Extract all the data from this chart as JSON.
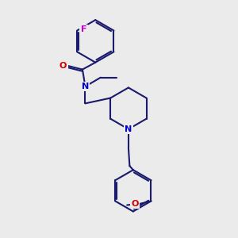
{
  "bg_color": "#ebebeb",
  "bond_color": "#1a1a6e",
  "N_color": "#0000cc",
  "O_color": "#cc0000",
  "F_color": "#cc00cc",
  "line_width": 1.5,
  "figsize": [
    3.0,
    3.0
  ],
  "dpi": 100,
  "xlim": [
    0,
    10
  ],
  "ylim": [
    0,
    10
  ]
}
